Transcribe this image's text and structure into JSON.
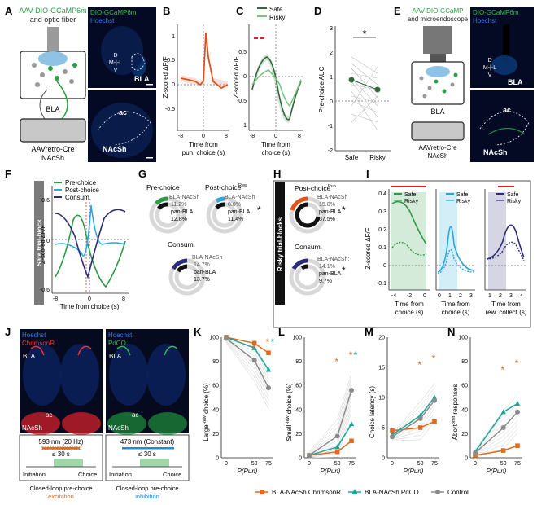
{
  "panels": {
    "A": "A",
    "B": "B",
    "C": "C",
    "D": "D",
    "E": "E",
    "F": "F",
    "G": "G",
    "H": "H",
    "I": "I",
    "J": "J",
    "K": "K",
    "L": "L",
    "M": "M",
    "N": "N"
  },
  "A": {
    "line1": "AAV-DIO-GCaMP6m",
    "line2": "and optic fiber",
    "bla": "BLA",
    "retro1": "AAVretro-Cre",
    "retro2": "NAcSh",
    "img_title": "DIO-GCaMP6m",
    "img_hoechst": "Hoechst",
    "img_bla": "BLA",
    "img_ac": "ac",
    "img_nacsh": "NAcSh",
    "d": "D",
    "mlat": "M-|-L",
    "v": "V"
  },
  "B": {
    "ylabel": "Z-scored ΔF/F",
    "xlabel1": "Time from",
    "xlabel2": "pun. choice (s)",
    "ticks_y": [
      "1",
      "0.5",
      "0",
      "-0.5"
    ],
    "ticks_x": [
      "-8",
      "0",
      "8"
    ]
  },
  "C": {
    "ylabel": "Z-scored ΔF/F",
    "xlabel1": "Time from",
    "xlabel2": "choice (s)",
    "legend_safe": "Safe",
    "legend_risky": "Risky",
    "ticks_y": [
      "0.5",
      "0",
      "-0.5",
      "-1"
    ],
    "ticks_x": [
      "-8",
      "0",
      "8"
    ]
  },
  "D": {
    "ylabel": "Pre-choice AUC",
    "xcats": [
      "Safe",
      "Risky"
    ],
    "ticks_y": [
      "3",
      "2",
      "1",
      "0",
      "-1",
      "-2"
    ],
    "star": "*"
  },
  "E": {
    "line1": "AAV-DIO-GCaMP",
    "line2": "and microendoscope",
    "bla": "BLA",
    "retro1": "AAVretro-Cre",
    "retro2": "NAcSh",
    "img_title": "DIO-GCaMP6m",
    "img_hoechst": "Hoechst",
    "img_bla": "BLA",
    "img_ac": "ac",
    "img_nacsh": "NAcSh",
    "d": "D",
    "mlat": "M-|-L",
    "v": "V"
  },
  "F": {
    "side": "Safe trial-block",
    "ylabel": "Z-scored ΔF/F",
    "xlabel": "Time from choice (s)",
    "legend": [
      "Pre-choice",
      "Post-choice",
      "Consum."
    ],
    "post_sup": "Rew",
    "ticks_y": [
      "0.6",
      "0",
      "-0.6"
    ],
    "ticks_x": [
      "-8",
      "0",
      "8"
    ]
  },
  "G": {
    "pre_title": "Pre-choice",
    "pre_a": "BLA-NAcSh",
    "pre_av": "11.2%",
    "pre_b": "pan-BLA",
    "pre_bv": "12.8%",
    "post_title": "Post-choice",
    "post_sup": "Rew",
    "post_a": "BLA-NAcSh",
    "post_av": "8.0%",
    "post_b": "pan-BLA",
    "post_bv": "11.4%",
    "post_star": "*",
    "con_title": "Consum.",
    "con_a": "BLA-NAcSh",
    "con_av": "14.7%",
    "con_b": "pan-BLA",
    "con_bv": "13.7%"
  },
  "H": {
    "side": "Risky trial-blocks",
    "post_title": "Post-choice",
    "post_sup": "Pun",
    "post_a": "BLA-NAcSh",
    "post_av": "15.0%",
    "post_b": "pan-BLA",
    "post_bv": "37.5%",
    "post_star": "*",
    "con_title": "Consum.",
    "con_a": "BLA-NAcSh:",
    "con_av": "14.1%",
    "con_b": "pan-BLA",
    "con_bv": "9.7%",
    "con_star": "*"
  },
  "I": {
    "ylabel": "Z-scored ΔF/F",
    "legend_safe": "Safe",
    "legend_risky": "Risky",
    "p1_xlabel": [
      "Time from",
      "choice (s)"
    ],
    "p1_ticks_x": [
      "-4",
      "-2",
      "0"
    ],
    "p2_xlabel": [
      "Time from",
      "choice (s)"
    ],
    "p2_ticks_x": [
      "0",
      "1",
      "2",
      "3"
    ],
    "p3_xlabel": [
      "Time from",
      "rew. collect (s)"
    ],
    "p3_ticks_x": [
      "1",
      "2",
      "3",
      "4"
    ],
    "ticks_y": [
      "0.4",
      "0.3",
      "0.2",
      "0.1",
      "0",
      "-0.1"
    ]
  },
  "J": {
    "l_hoechst": "Hoechst",
    "l_chrimson": "ChrimsonR",
    "l_bla": "BLA",
    "l_ac": "ac",
    "l_nacsh": "NAcSh",
    "r_hoechst": "Hoechst",
    "r_pdco": "PdCO",
    "r_bla": "BLA",
    "r_ac": "ac",
    "r_nacsh": "NAcSh",
    "l_light": "593 nm (20 Hz)",
    "l_dur": "≤ 30 s",
    "l_init": "Initiation",
    "l_choice": "Choice",
    "l_cap1": "Closed-loop pre-choice",
    "l_cap2": "excitation",
    "r_light": "473 nm (Constant)",
    "r_dur": "≤ 30 s",
    "r_init": "Initiation",
    "r_choice": "Choice",
    "r_cap1": "Closed-loop pre-choice",
    "r_cap2": "inhibition"
  },
  "K": {
    "ylabel": "Large",
    "ysup": "Rew",
    "ylabel2": " choice (%)",
    "ticks_y": [
      "100",
      "80",
      "60",
      "40",
      "20",
      "0"
    ],
    "stars": [
      "*",
      "*",
      "*"
    ]
  },
  "L": {
    "ylabel": "Small",
    "ysup": "Rew",
    "ylabel2": " choice (%)",
    "ticks_y": [
      "100",
      "80",
      "60",
      "40",
      "20",
      "0"
    ],
    "stars": [
      "*",
      "*",
      "*"
    ]
  },
  "M": {
    "ylabel": "Choice latency (s)",
    "ticks_y": [
      "20",
      "15",
      "10",
      "5",
      "0"
    ],
    "stars": [
      "*",
      "*"
    ]
  },
  "N": {
    "ylabel": "Abort",
    "ysup": "omit",
    "ylabel2": " responses",
    "ticks_y": [
      "100",
      "80",
      "60",
      "40",
      "20",
      "0"
    ],
    "stars": [
      "*",
      "*"
    ]
  },
  "xaxis": {
    "label": "P(Pun)",
    "ticks": [
      "0",
      "50",
      "75"
    ]
  },
  "legend_bottom": {
    "chrimson": "BLA-NAcSh ChrimsonR",
    "pdco": "BLA-NAcSh PdCO",
    "control": "Control"
  },
  "colors": {
    "safe": "#2e8b3e",
    "risky": "#2e8b3e",
    "pun": "#e0531b",
    "pre": "#2e9a45",
    "post": "#2aa8dc",
    "consum": "#2d2c7a",
    "orange": "#e26a1f",
    "teal": "#1aa69b",
    "grey": "#8a8a8a",
    "red": "#e02020",
    "blue": "#1b8ed6",
    "green": "#2aa040"
  },
  "chart_data": [
    {
      "type": "line",
      "panel": "K",
      "x": [
        0,
        50,
        75
      ],
      "series": [
        {
          "name": "BLA-NAcSh ChrimsonR",
          "values": [
            100,
            95,
            87
          ]
        },
        {
          "name": "BLA-NAcSh PdCO",
          "values": [
            100,
            91,
            73
          ]
        },
        {
          "name": "Control",
          "values": [
            99,
            81,
            58
          ]
        }
      ],
      "ylim": [
        0,
        100
      ]
    },
    {
      "type": "line",
      "panel": "L",
      "x": [
        0,
        50,
        75
      ],
      "series": [
        {
          "name": "BLA-NAcSh ChrimsonR",
          "values": [
            2,
            5,
            14
          ]
        },
        {
          "name": "BLA-NAcSh PdCO",
          "values": [
            2,
            9,
            28
          ]
        },
        {
          "name": "Control",
          "values": [
            2,
            18,
            56
          ]
        }
      ],
      "ylim": [
        0,
        100
      ]
    },
    {
      "type": "line",
      "panel": "M",
      "x": [
        0,
        50,
        75
      ],
      "series": [
        {
          "name": "BLA-NAcSh ChrimsonR",
          "values": [
            4.5,
            5,
            6
          ]
        },
        {
          "name": "BLA-NAcSh PdCO",
          "values": [
            3.8,
            7,
            10
          ]
        },
        {
          "name": "Control",
          "values": [
            3.5,
            6.5,
            9.5
          ]
        }
      ],
      "ylim": [
        0,
        20
      ]
    },
    {
      "type": "line",
      "panel": "N",
      "x": [
        0,
        50,
        75
      ],
      "series": [
        {
          "name": "BLA-NAcSh ChrimsonR",
          "values": [
            2,
            6,
            10
          ]
        },
        {
          "name": "BLA-NAcSh PdCO",
          "values": [
            5,
            38,
            45
          ]
        },
        {
          "name": "Control",
          "values": [
            4,
            25,
            38
          ]
        }
      ],
      "ylim": [
        0,
        100
      ]
    },
    {
      "type": "scatter",
      "panel": "D",
      "categories": [
        "Safe",
        "Risky"
      ],
      "values": [
        0.9,
        0.4
      ],
      "ylim": [
        -2,
        3
      ]
    },
    {
      "type": "pie",
      "panel": "G",
      "series": [
        {
          "name": "Pre-choice",
          "values": [
            11.2,
            12.8
          ]
        },
        {
          "name": "Post-choice",
          "values": [
            8.0,
            11.4
          ]
        },
        {
          "name": "Consum.",
          "values": [
            14.7,
            13.7
          ]
        }
      ]
    },
    {
      "type": "pie",
      "panel": "H",
      "series": [
        {
          "name": "Post-choice",
          "values": [
            15.0,
            37.5
          ]
        },
        {
          "name": "Consum.",
          "values": [
            14.1,
            9.7
          ]
        }
      ]
    }
  ]
}
